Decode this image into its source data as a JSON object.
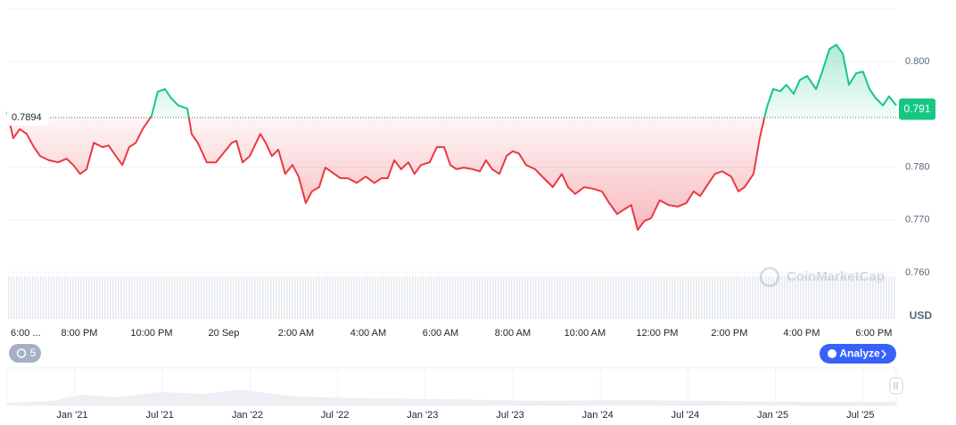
{
  "chart_data": {
    "type": "line",
    "x": [
      0,
      0.17,
      0.35,
      0.54,
      0.74,
      0.91,
      1.16,
      1.41,
      1.65,
      1.83,
      2.02,
      2.2,
      2.4,
      2.64,
      2.81,
      3.01,
      3.19,
      3.38,
      3.56,
      3.75,
      4,
      4.17,
      4.37,
      4.54,
      4.74,
      4.99,
      5.11,
      5.28,
      5.53,
      5.78,
      5.98,
      6.22,
      6.35,
      6.52,
      6.72,
      7.01,
      7.16,
      7.33,
      7.51,
      7.7,
      7.9,
      8.07,
      8.27,
      8.44,
      8.64,
      8.81,
      9.06,
      9.23,
      9.43,
      9.68,
      9.93,
      10.17,
      10.37,
      10.54,
      10.72,
      10.91,
      11.11,
      11.28,
      11.46,
      11.7,
      11.9,
      12.1,
      12.27,
      12.44,
      12.64,
      12.89,
      13.09,
      13.26,
      13.43,
      13.63,
      13.83,
      14,
      14.17,
      14.37,
      14.62,
      14.86,
      15.11,
      15.36,
      15.53,
      15.73,
      15.98,
      16.22,
      16.47,
      16.67,
      16.89,
      17.09,
      17.28,
      17.46,
      17.65,
      17.83,
      18.07,
      18.32,
      18.57,
      18.81,
      19.01,
      19.19,
      19.43,
      19.6,
      19.8,
      20.05,
      20.25,
      20.42,
      20.67,
      20.84,
      21.04,
      21.21,
      21.41,
      21.58,
      21.78,
      21.95,
      22.15,
      22.4,
      22.57,
      22.77,
      22.96,
      23.14,
      23.31,
      23.51,
      23.7,
      23.88,
      24.05,
      24.25,
      24.42,
      24.62
    ],
    "values": [
      0.7905,
      0.7855,
      0.7872,
      0.7863,
      0.7838,
      0.7821,
      0.7813,
      0.7809,
      0.7816,
      0.7804,
      0.7787,
      0.7796,
      0.7846,
      0.7838,
      0.7841,
      0.7821,
      0.7804,
      0.7838,
      0.7846,
      0.7872,
      0.7897,
      0.7943,
      0.7948,
      0.7931,
      0.7917,
      0.7911,
      0.7863,
      0.7846,
      0.7809,
      0.7809,
      0.7826,
      0.7846,
      0.785,
      0.7809,
      0.7821,
      0.7863,
      0.7846,
      0.7821,
      0.7833,
      0.7787,
      0.7804,
      0.7782,
      0.7732,
      0.7754,
      0.7762,
      0.7799,
      0.7787,
      0.7779,
      0.7779,
      0.777,
      0.7782,
      0.777,
      0.7779,
      0.7779,
      0.7813,
      0.7796,
      0.7809,
      0.7787,
      0.7804,
      0.7809,
      0.7838,
      0.7838,
      0.7804,
      0.7796,
      0.7799,
      0.7796,
      0.7792,
      0.7813,
      0.7796,
      0.7787,
      0.7821,
      0.783,
      0.7826,
      0.7804,
      0.7796,
      0.7779,
      0.7762,
      0.7787,
      0.7762,
      0.7749,
      0.7762,
      0.7759,
      0.7754,
      0.7732,
      0.7711,
      0.772,
      0.7728,
      0.7681,
      0.7698,
      0.7703,
      0.7737,
      0.7728,
      0.7725,
      0.7732,
      0.7754,
      0.7745,
      0.777,
      0.7787,
      0.7792,
      0.7782,
      0.7754,
      0.7762,
      0.7787,
      0.7855,
      0.7914,
      0.7948,
      0.7944,
      0.7956,
      0.7939,
      0.7965,
      0.7973,
      0.7948,
      0.7981,
      0.8024,
      0.8032,
      0.8015,
      0.7956,
      0.7978,
      0.7981,
      0.7948,
      0.7931,
      0.7917,
      0.7934,
      0.7917
    ],
    "up_color": "#16c784",
    "down_color": "#ea3943",
    "baseline": 0.7894,
    "current_price": 0.791,
    "xlim": [
      0,
      24.62
    ],
    "xticks": [
      {
        "value": 0,
        "label": "6:00 ..."
      },
      {
        "value": 2,
        "label": "8:00 PM"
      },
      {
        "value": 4,
        "label": "10:00 PM"
      },
      {
        "value": 6,
        "label": "20 Sep"
      },
      {
        "value": 8,
        "label": "2:00 AM"
      },
      {
        "value": 10,
        "label": "4:00 AM"
      },
      {
        "value": 12,
        "label": "6:00 AM"
      },
      {
        "value": 14,
        "label": "8:00 AM"
      },
      {
        "value": 16,
        "label": "10:00 AM"
      },
      {
        "value": 18,
        "label": "12:00 PM"
      },
      {
        "value": 20,
        "label": "2:00 PM"
      },
      {
        "value": 22,
        "label": "4:00 PM"
      },
      {
        "value": 24,
        "label": "6:00 PM"
      }
    ],
    "ylim": [
      0.7512,
      0.81
    ],
    "yticks": [
      {
        "value": 0.76,
        "label": "0.760"
      },
      {
        "value": 0.77,
        "label": "0.770"
      },
      {
        "value": 0.78,
        "label": "0.780"
      },
      {
        "value": 0.8,
        "label": "0.800"
      }
    ],
    "grid": true,
    "currency": "USD",
    "watermark": "CoinMarketCap",
    "history_count": 5,
    "button": "Analyze",
    "navigator_labels": [
      "Jan '21",
      "Jul '21",
      "Jan '22",
      "Jul '22",
      "Jan '23",
      "Jul '23",
      "Jan '24",
      "Jul '24",
      "Jan '25",
      "Jul '25"
    ]
  }
}
